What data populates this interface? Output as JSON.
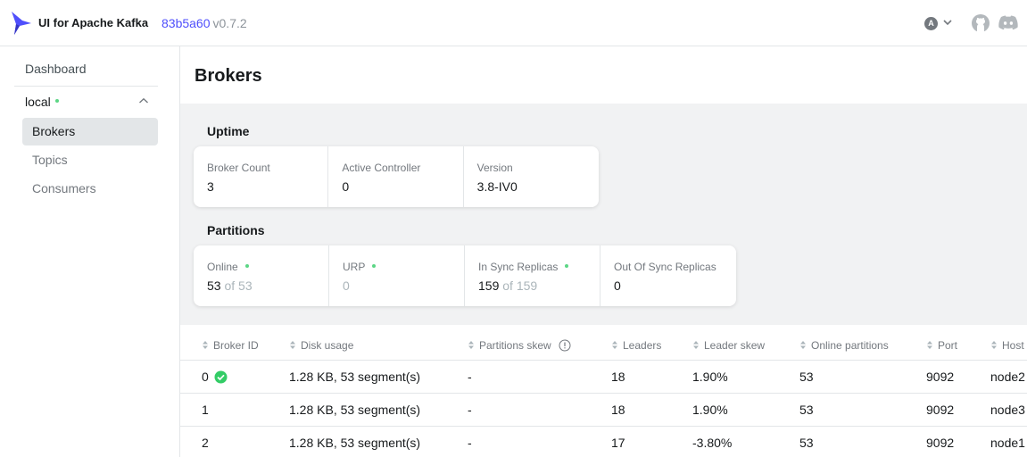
{
  "header": {
    "app_name": "UI for Apache Kafka",
    "commit": "83b5a60",
    "version": "v0.7.2",
    "user_initial": "A",
    "icons": [
      "kafka-logo-icon",
      "chevron-down-icon",
      "github-icon",
      "discord-icon"
    ]
  },
  "sidebar": {
    "dashboard": "Dashboard",
    "cluster_name": "local",
    "items": [
      {
        "label": "Brokers",
        "active": true
      },
      {
        "label": "Topics",
        "active": false
      },
      {
        "label": "Consumers",
        "active": false
      }
    ]
  },
  "page": {
    "title": "Brokers",
    "uptime_title": "Uptime",
    "partitions_title": "Partitions",
    "uptime_cards": [
      {
        "label": "Broker Count",
        "value": "3"
      },
      {
        "label": "Active Controller",
        "value": "0"
      },
      {
        "label": "Version",
        "value": "3.8-IV0"
      }
    ],
    "partitions_cards": [
      {
        "label": "Online",
        "value": "53",
        "of": "of 53"
      },
      {
        "label": "URP",
        "value": "0"
      },
      {
        "label": "In Sync Replicas",
        "value": "159",
        "of": "of 159"
      },
      {
        "label": "Out Of Sync Replicas",
        "value": "0"
      }
    ]
  },
  "table": {
    "columns": [
      "Broker ID",
      "Disk usage",
      "Partitions skew",
      "Leaders",
      "Leader skew",
      "Online partitions",
      "Port",
      "Host"
    ],
    "rows": [
      [
        "0",
        "1.28 KB, 53 segment(s)",
        "-",
        "18",
        "1.90%",
        "53",
        "9092",
        "node2"
      ],
      [
        "1",
        "1.28 KB, 53 segment(s)",
        "-",
        "18",
        "1.90%",
        "53",
        "9092",
        "node3"
      ],
      [
        "2",
        "1.28 KB, 53 segment(s)",
        "-",
        "17",
        "-3.80%",
        "53",
        "9092",
        "node1"
      ]
    ]
  },
  "colors": {
    "accent": "#4f4ffc",
    "status_ok": "#5cd685",
    "metrics_bg": "#f1f2f3"
  }
}
